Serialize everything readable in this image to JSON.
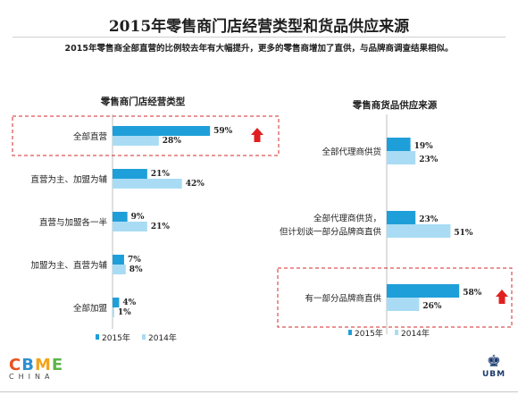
{
  "header": {
    "title": "2015年零售商门店经营类型和货品供应来源",
    "subtitle": "2015年零售商全部直营的比例较去年有大幅提升，更多的零售商增加了直供，与品牌商调查结果相似。"
  },
  "colors": {
    "series_2015": "#1f9fd9",
    "series_2014": "#a9dcf4",
    "highlight_box": "#d42a2a",
    "up_arrow": "#e02020"
  },
  "chart_data": [
    {
      "type": "bar",
      "orientation": "horizontal",
      "title": "零售商门店经营类型",
      "categories": [
        "全部直营",
        "直营为主、加盟为辅",
        "直营与加盟各一半",
        "加盟为主、直营为辅",
        "全部加盟"
      ],
      "series": [
        {
          "name": "2015年",
          "values": [
            59,
            21,
            9,
            7,
            4
          ]
        },
        {
          "name": "2014年",
          "values": [
            28,
            42,
            21,
            8,
            1
          ]
        }
      ],
      "data_labels": {
        "2015年": [
          "59%",
          "21%",
          "9%",
          "7%",
          "4%"
        ],
        "2014年": [
          "28%",
          "42%",
          "21%",
          "8%",
          "1%"
        ]
      },
      "highlight_category": "全部直营",
      "legend_position": "bottom",
      "grid": false
    },
    {
      "type": "bar",
      "orientation": "horizontal",
      "title": "零售商货品供应来源",
      "categories": [
        "全部代理商供货",
        "全部代理商供货，但计划谈一部分品牌商直供",
        "有一部分品牌商直供"
      ],
      "category_lines": [
        [
          "全部代理商供货"
        ],
        [
          "全部代理商供货，",
          "但计划谈一部分品牌商直供"
        ],
        [
          "有一部分品牌商直供"
        ]
      ],
      "series": [
        {
          "name": "2015年",
          "values": [
            19,
            23,
            58
          ]
        },
        {
          "name": "2014年",
          "values": [
            23,
            51,
            26
          ]
        }
      ],
      "data_labels": {
        "2015年": [
          "19%",
          "23%",
          "58%"
        ],
        "2014年": [
          "23%",
          "51%",
          "26%"
        ]
      },
      "highlight_category": "有一部分品牌商直供",
      "legend_position": "bottom",
      "grid": false
    }
  ],
  "logos": {
    "left_text": "CBME",
    "left_sub": "CHINA",
    "right_text": "UBM"
  }
}
